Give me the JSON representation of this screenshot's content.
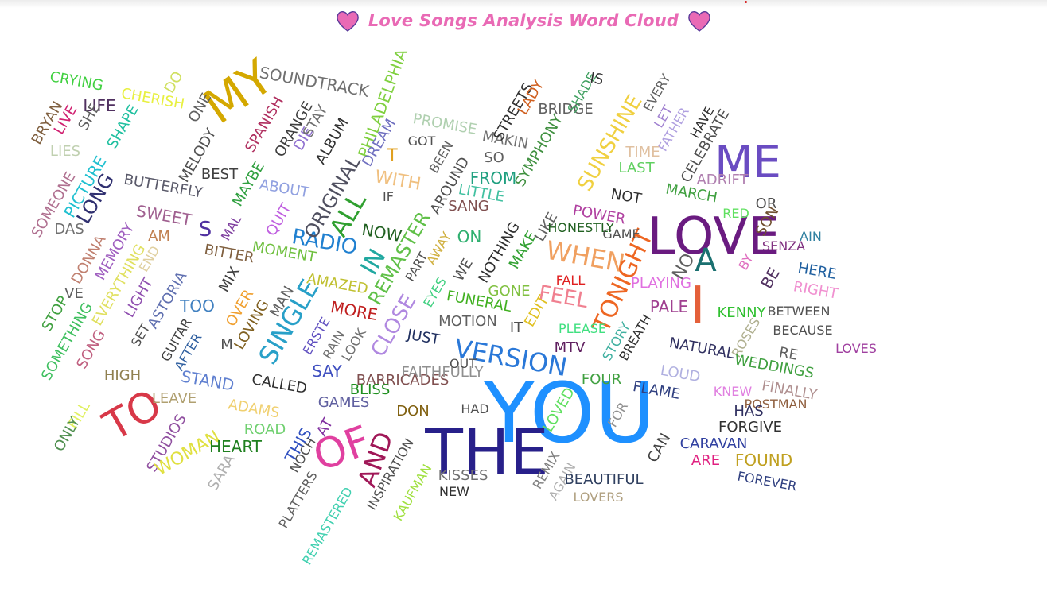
{
  "title": "Love Songs Analysis Word Cloud",
  "heart_color": "#e96ab5",
  "heart_outline": "#5a3a9a",
  "words": [
    {
      "text": "YOU",
      "color": "#1e90ff"
    },
    {
      "text": "THE",
      "color": "#28208a"
    },
    {
      "text": "LOVE",
      "color": "#6a1b80"
    },
    {
      "text": "ME",
      "color": "#6a4cc2"
    },
    {
      "text": "MY",
      "color": "#d4a800"
    },
    {
      "text": "I",
      "color": "#e4603a"
    },
    {
      "text": "OF",
      "color": "#e040a0"
    },
    {
      "text": "TO",
      "color": "#d83848"
    },
    {
      "text": "A",
      "color": "#1a7070"
    },
    {
      "text": "AND",
      "color": "#a01858"
    },
    {
      "text": "VERSION",
      "color": "#2a78d8"
    },
    {
      "text": "SINGLE",
      "color": "#28a0c8"
    },
    {
      "text": "WHEN",
      "color": "#f0a060"
    },
    {
      "text": "TONIGHT",
      "color": "#ee6622"
    },
    {
      "text": "ALL",
      "color": "#30a030"
    },
    {
      "text": "IN",
      "color": "#20a8a0"
    },
    {
      "text": "RADIO",
      "color": "#2080d0"
    },
    {
      "text": "CLOSE",
      "color": "#b088e0"
    },
    {
      "text": "REMASTER",
      "color": "#60c048"
    },
    {
      "text": "ORIGINAL",
      "color": "#505060"
    },
    {
      "text": "FEEL",
      "color": "#f08090"
    },
    {
      "text": "SUNSHINE",
      "color": "#f0d040"
    },
    {
      "text": "PHILADELPHIA",
      "color": "#80d040"
    },
    {
      "text": "SOUNDTRACK",
      "color": "#707070"
    },
    {
      "text": "BUTTERFLY",
      "color": "#5a5a6a"
    },
    {
      "text": "SWEET",
      "color": "#a06090"
    },
    {
      "text": "LONG",
      "color": "#303070"
    },
    {
      "text": "PICTURE",
      "color": "#20c0d0"
    },
    {
      "text": "SOMEONE",
      "color": "#b07090"
    },
    {
      "text": "MELODY",
      "color": "#505050"
    },
    {
      "text": "SPANISH",
      "color": "#b03060"
    },
    {
      "text": "ORANGE",
      "color": "#404040"
    },
    {
      "text": "DIE",
      "color": "#9070d0"
    },
    {
      "text": "STAY",
      "color": "#707070"
    },
    {
      "text": "ALBUM",
      "color": "#303030"
    },
    {
      "text": "DREAM",
      "color": "#7070c0"
    },
    {
      "text": "T",
      "color": "#e0a020"
    },
    {
      "text": "WITH",
      "color": "#f0c080"
    },
    {
      "text": "IF",
      "color": "#505050"
    },
    {
      "text": "NOW",
      "color": "#206020"
    },
    {
      "text": "QUIT",
      "color": "#c060e0"
    },
    {
      "text": "MOMENT",
      "color": "#70c040"
    },
    {
      "text": "ABOUT",
      "color": "#90a0e0"
    },
    {
      "text": "MAYBE",
      "color": "#30a040"
    },
    {
      "text": "BEST",
      "color": "#404040"
    },
    {
      "text": "MAL",
      "color": "#8040a0"
    },
    {
      "text": "S",
      "color": "#5030a0"
    },
    {
      "text": "AM",
      "color": "#c08050"
    },
    {
      "text": "BITTER",
      "color": "#806040"
    },
    {
      "text": "CRYING",
      "color": "#40d040"
    },
    {
      "text": "CHERISH",
      "color": "#e8f040"
    },
    {
      "text": "DO",
      "color": "#d0e060"
    },
    {
      "text": "ONE",
      "color": "#606060"
    },
    {
      "text": "LIFE",
      "color": "#503060"
    },
    {
      "text": "SHE",
      "color": "#606060"
    },
    {
      "text": "LIVE",
      "color": "#d02070"
    },
    {
      "text": "BRYAN",
      "color": "#806040"
    },
    {
      "text": "SHAPE",
      "color": "#20c0a0"
    },
    {
      "text": "LIES",
      "color": "#c0d0b0"
    },
    {
      "text": "DAS",
      "color": "#707070"
    },
    {
      "text": "DONNA",
      "color": "#c08070"
    },
    {
      "text": "MEMORY",
      "color": "#a060c0"
    },
    {
      "text": "EVERYTHING",
      "color": "#e0e060"
    },
    {
      "text": "END",
      "color": "#e0d0a0"
    },
    {
      "text": "LIGHT",
      "color": "#9050b0"
    },
    {
      "text": "VE",
      "color": "#606060"
    },
    {
      "text": "STOP",
      "color": "#40a040"
    },
    {
      "text": "SOMETHING",
      "color": "#40c060"
    },
    {
      "text": "SONG",
      "color": "#c06080"
    },
    {
      "text": "SET",
      "color": "#505050"
    },
    {
      "text": "ASTORIA",
      "color": "#6070b0"
    },
    {
      "text": "TOO",
      "color": "#4080c0"
    },
    {
      "text": "MIX",
      "color": "#404040"
    },
    {
      "text": "OVER",
      "color": "#f0a030"
    },
    {
      "text": "MAN",
      "color": "#606060"
    },
    {
      "text": "LOVING",
      "color": "#806020"
    },
    {
      "text": "M",
      "color": "#505050"
    },
    {
      "text": "GUITAR",
      "color": "#404040"
    },
    {
      "text": "AFTER",
      "color": "#3060a0"
    },
    {
      "text": "HIGH",
      "color": "#908050"
    },
    {
      "text": "STAND",
      "color": "#6080d0"
    },
    {
      "text": "CALLED",
      "color": "#303030"
    },
    {
      "text": "LEAVE",
      "color": "#b0a070"
    },
    {
      "text": "ADAMS",
      "color": "#f0d070"
    },
    {
      "text": "ROAD",
      "color": "#70d070"
    },
    {
      "text": "FILL",
      "color": "#e0f060"
    },
    {
      "text": "ONLY",
      "color": "#509050"
    },
    {
      "text": "STUDIOS",
      "color": "#9050a0"
    },
    {
      "text": "WOMAN",
      "color": "#e0e040"
    },
    {
      "text": "HEART",
      "color": "#208020"
    },
    {
      "text": "SARA",
      "color": "#b0b0b0"
    },
    {
      "text": "THIS",
      "color": "#3050c0"
    },
    {
      "text": "AT",
      "color": "#8030a0"
    },
    {
      "text": "NOCH",
      "color": "#505050"
    },
    {
      "text": "PLATTERS",
      "color": "#606060"
    },
    {
      "text": "REMASTERED",
      "color": "#40d0b0"
    },
    {
      "text": "INSPIRATION",
      "color": "#505050"
    },
    {
      "text": "KAUFMAN",
      "color": "#a0e040"
    },
    {
      "text": "KISSES",
      "color": "#707070"
    },
    {
      "text": "NEW",
      "color": "#303030"
    },
    {
      "text": "AMAZED",
      "color": "#c0c030"
    },
    {
      "text": "MORE",
      "color": "#c02020"
    },
    {
      "text": "ERSTE",
      "color": "#6050c0"
    },
    {
      "text": "RAIN",
      "color": "#707070"
    },
    {
      "text": "LOOK",
      "color": "#707070"
    },
    {
      "text": "SAY",
      "color": "#4050c0"
    },
    {
      "text": "BARRICADES",
      "color": "#805050"
    },
    {
      "text": "BLISS",
      "color": "#209020"
    },
    {
      "text": "GAMES",
      "color": "#6060a0"
    },
    {
      "text": "DON",
      "color": "#806010"
    },
    {
      "text": "HAD",
      "color": "#505050"
    },
    {
      "text": "JUST",
      "color": "#203060"
    },
    {
      "text": "FAITHFULLY",
      "color": "#909090"
    },
    {
      "text": "OUT",
      "color": "#505050"
    },
    {
      "text": "PART",
      "color": "#505050"
    },
    {
      "text": "AWAY",
      "color": "#d0b040"
    },
    {
      "text": "EYES",
      "color": "#40d080"
    },
    {
      "text": "MOTION",
      "color": "#606060"
    },
    {
      "text": "IT",
      "color": "#505050"
    },
    {
      "text": "EDIT",
      "color": "#e0c020"
    },
    {
      "text": "FUNERAL",
      "color": "#40b020"
    },
    {
      "text": "GONE",
      "color": "#80c040"
    },
    {
      "text": "WE",
      "color": "#505050"
    },
    {
      "text": "NOTHING",
      "color": "#303030"
    },
    {
      "text": "MAKE",
      "color": "#30a030"
    },
    {
      "text": "LIKE",
      "color": "#606060"
    },
    {
      "text": "ON",
      "color": "#30b070"
    },
    {
      "text": "SANG",
      "color": "#805050"
    },
    {
      "text": "AROUND",
      "color": "#505050"
    },
    {
      "text": "BEEN",
      "color": "#606060"
    },
    {
      "text": "GOT",
      "color": "#505050"
    },
    {
      "text": "LITTLE",
      "color": "#40c0a0"
    },
    {
      "text": "FROM",
      "color": "#20a080"
    },
    {
      "text": "SO",
      "color": "#606060"
    },
    {
      "text": "MAKIN",
      "color": "#707070"
    },
    {
      "text": "PROMISE",
      "color": "#b0d0b0"
    },
    {
      "text": "STREETS",
      "color": "#303030"
    },
    {
      "text": "LADY",
      "color": "#d06020"
    },
    {
      "text": "BRIDGE",
      "color": "#606060"
    },
    {
      "text": "SHADE",
      "color": "#40a060"
    },
    {
      "text": "IS",
      "color": "#303030"
    },
    {
      "text": "SYMPHONY",
      "color": "#409040"
    },
    {
      "text": "EVERY",
      "color": "#606060"
    },
    {
      "text": "LET",
      "color": "#a080d0"
    },
    {
      "text": "FATHER",
      "color": "#b0a0e0"
    },
    {
      "text": "HAVE",
      "color": "#303030"
    },
    {
      "text": "CELEBRATE",
      "color": "#505050"
    },
    {
      "text": "TIME",
      "color": "#e0c0a0"
    },
    {
      "text": "LAST",
      "color": "#60d060"
    },
    {
      "text": "ADRIFT",
      "color": "#b080b0"
    },
    {
      "text": "NOT",
      "color": "#303030"
    },
    {
      "text": "MARCH",
      "color": "#40a040"
    },
    {
      "text": "POWER",
      "color": "#b040a0"
    },
    {
      "text": "HONESTLY",
      "color": "#206020"
    },
    {
      "text": "GAME",
      "color": "#505050"
    },
    {
      "text": "RED",
      "color": "#60e060"
    },
    {
      "text": "OR",
      "color": "#505050"
    },
    {
      "text": "SON",
      "color": "#705030"
    },
    {
      "text": "AIN",
      "color": "#3080a0"
    },
    {
      "text": "SENZA",
      "color": "#803080"
    },
    {
      "text": "NO",
      "color": "#606060"
    },
    {
      "text": "BY",
      "color": "#e070c0"
    },
    {
      "text": "BE",
      "color": "#503060"
    },
    {
      "text": "HERE",
      "color": "#2060a0"
    },
    {
      "text": "RIGHT",
      "color": "#f090d0"
    },
    {
      "text": "PLAYING",
      "color": "#e070e0"
    },
    {
      "text": "PALE",
      "color": "#a04090"
    },
    {
      "text": "FALL",
      "color": "#e02020"
    },
    {
      "text": "BETWEEN",
      "color": "#505050"
    },
    {
      "text": "KENNY",
      "color": "#30c030"
    },
    {
      "text": "BECAUSE",
      "color": "#505050"
    },
    {
      "text": "LOVES",
      "color": "#a040a0"
    },
    {
      "text": "ROSES",
      "color": "#b0b090"
    },
    {
      "text": "RE",
      "color": "#606060"
    },
    {
      "text": "NATURAL",
      "color": "#303060"
    },
    {
      "text": "WEDDINGS",
      "color": "#40a040"
    },
    {
      "text": "STORY",
      "color": "#40b0a0"
    },
    {
      "text": "BREATH",
      "color": "#303030"
    },
    {
      "text": "PLEASE",
      "color": "#40e080"
    },
    {
      "text": "MTV",
      "color": "#602060"
    },
    {
      "text": "LOUD",
      "color": "#b0b0e0"
    },
    {
      "text": "FINALLY",
      "color": "#b09090"
    },
    {
      "text": "POSTMAN",
      "color": "#906040"
    },
    {
      "text": "KNEW",
      "color": "#e080e0"
    },
    {
      "text": "HAS",
      "color": "#303060"
    },
    {
      "text": "FORGIVE",
      "color": "#303030"
    },
    {
      "text": "FOUR",
      "color": "#40a040"
    },
    {
      "text": "FLAME",
      "color": "#304080"
    },
    {
      "text": "LOVED",
      "color": "#60e060"
    },
    {
      "text": "FOR",
      "color": "#909090"
    },
    {
      "text": "CAN",
      "color": "#404040"
    },
    {
      "text": "CARAVAN",
      "color": "#3040a0"
    },
    {
      "text": "FOUND",
      "color": "#c0a020"
    },
    {
      "text": "ARE",
      "color": "#e02080"
    },
    {
      "text": "FOREVER",
      "color": "#304080"
    },
    {
      "text": "REMIX",
      "color": "#808080"
    },
    {
      "text": "AGAIN",
      "color": "#b0b0b0"
    },
    {
      "text": "BEAUTIFUL",
      "color": "#304060"
    },
    {
      "text": "LOVERS",
      "color": "#b0a080"
    },
    {
      "text": "MYSELF",
      "color": "#707070"
    }
  ]
}
